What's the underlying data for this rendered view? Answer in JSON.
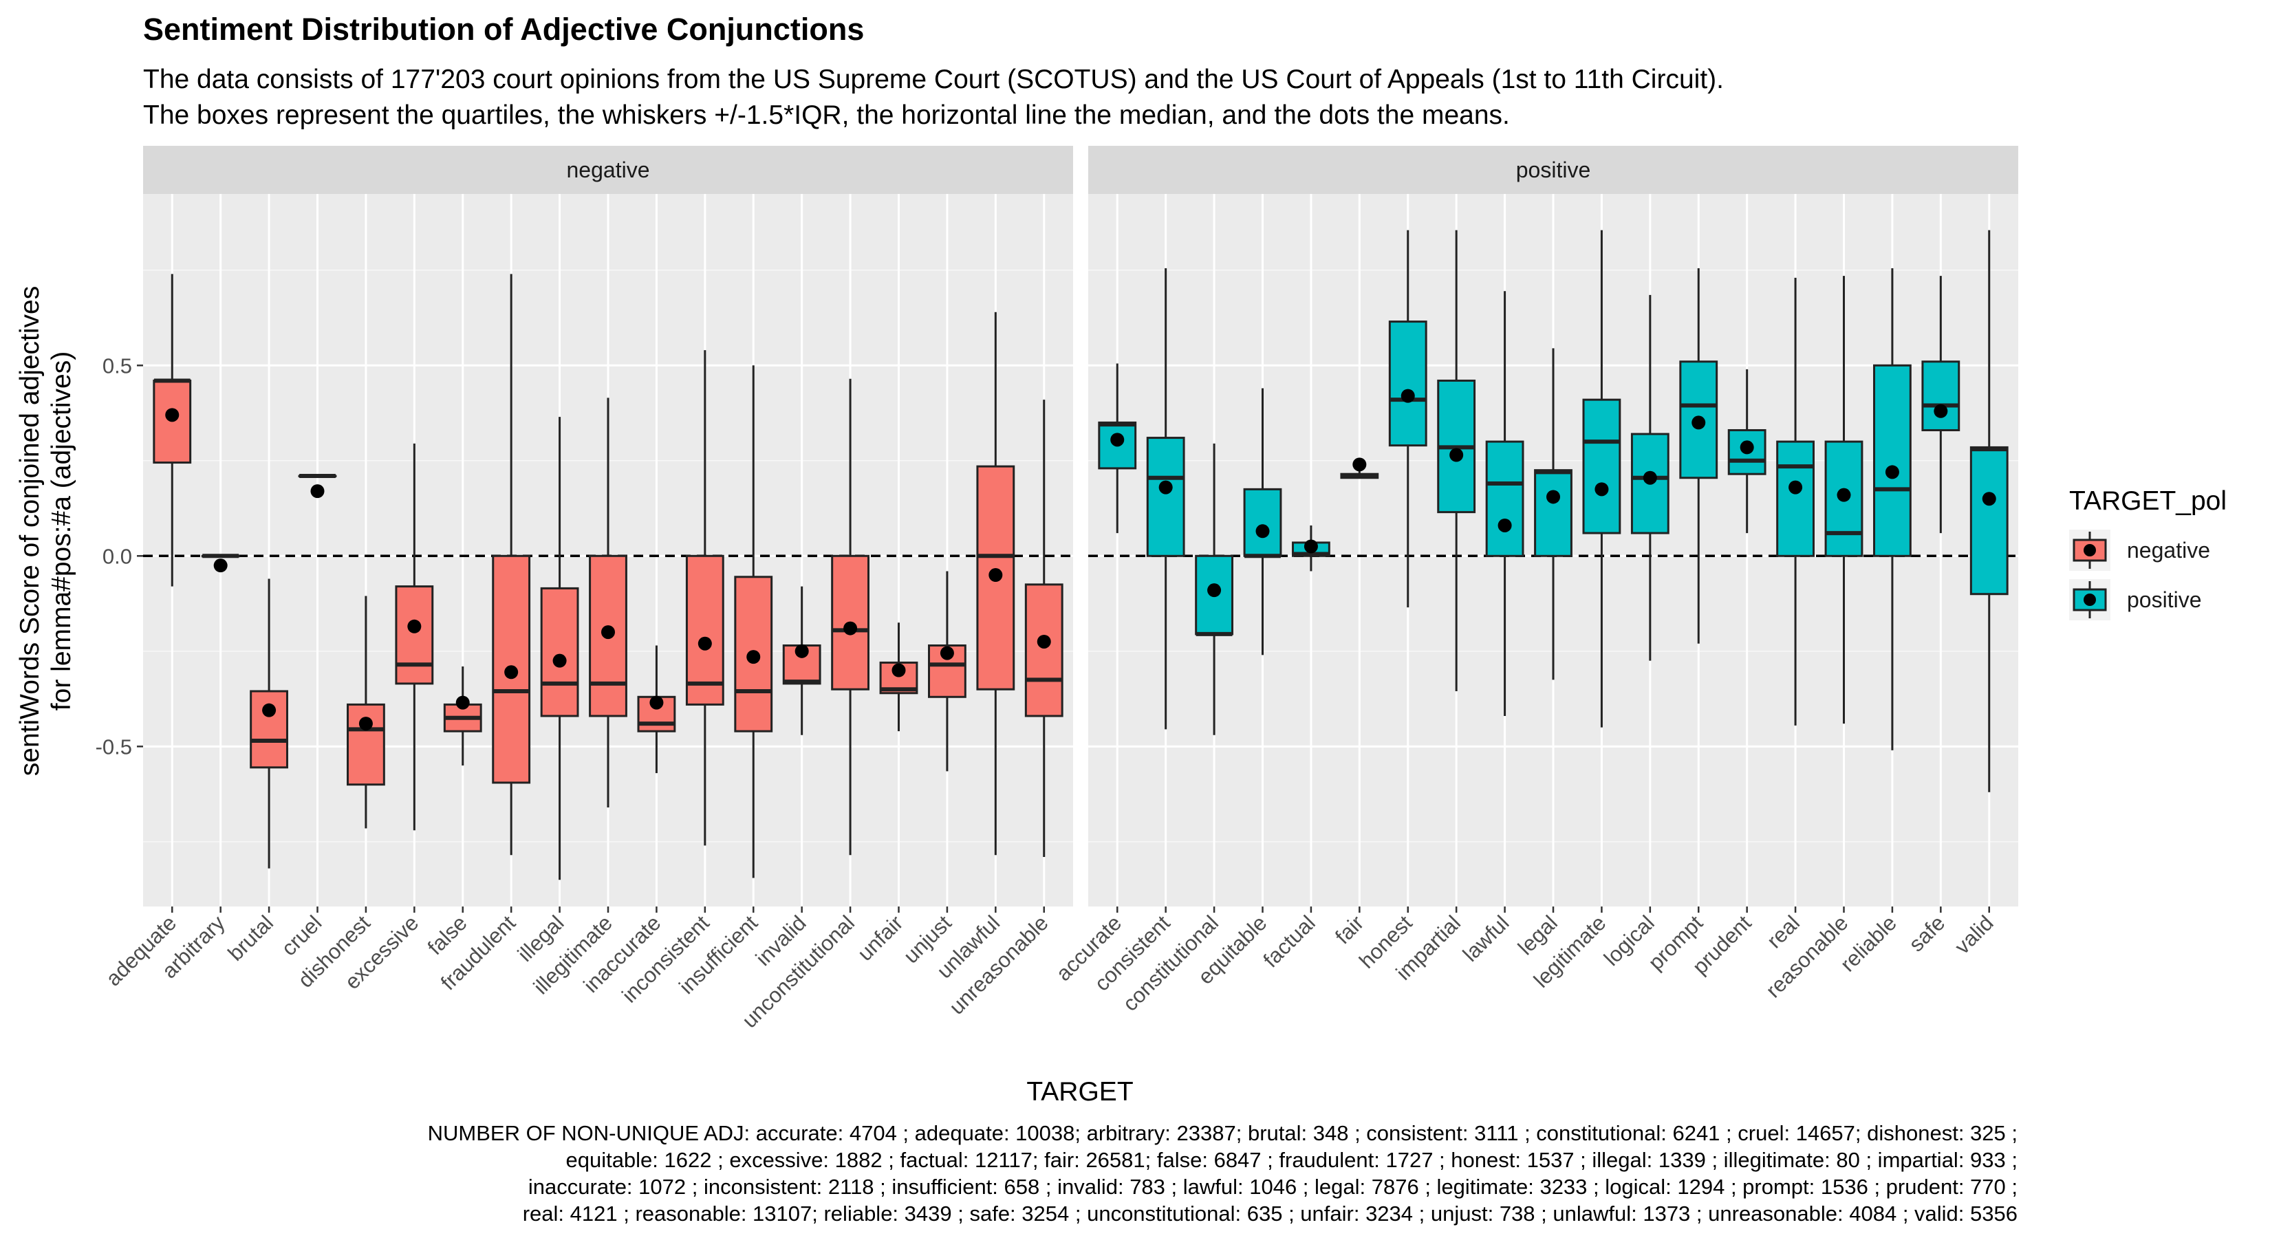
{
  "title": "Sentiment Distribution of Adjective Conjunctions",
  "subtitle_lines": [
    "The data consists of 177'203 court opinions from the US Supreme Court (SCOTUS) and the US Court of Appeals (1st to 11th Circuit).",
    "The boxes represent the quartiles, the whiskers +/-1.5*IQR, the horizontal line the median, and the dots the means."
  ],
  "caption_lines": [
    "NUMBER OF NON-UNIQUE ADJ: accurate: 4704 ; adequate: 10038; arbitrary: 23387; brutal: 348 ; consistent: 3111 ; constitutional: 6241 ; cruel: 14657; dishonest: 325 ;",
    "equitable: 1622 ; excessive: 1882 ; factual: 12117; fair: 26581; false: 6847 ; fraudulent: 1727 ; honest: 1537 ; illegal: 1339 ; illegitimate: 80 ; impartial: 933 ;",
    "inaccurate: 1072 ; inconsistent: 2118 ; insufficient: 658 ; invalid: 783 ; lawful: 1046 ; legal: 7876 ; legitimate: 3233 ; logical: 1294 ; prompt: 1536 ; prudent: 770 ;",
    "real: 4121 ; reasonable: 13107; reliable: 3439 ; safe: 3254 ; unconstitutional: 635 ; unfair: 3234 ; unjust: 738 ; unlawful: 1373 ; unreasonable: 4084 ; valid: 5356"
  ],
  "chart_data": {
    "type": "boxplot",
    "xlabel": "TARGET",
    "ylabel_lines": [
      "sentiWords Score of conjoined adjectives",
      "for lemma#pos:#a (adjectives)"
    ],
    "ylim": [
      -0.92,
      0.95
    ],
    "yticks": [
      -0.5,
      0.0,
      0.5
    ],
    "ytick_labels": [
      "-0.5",
      "0.0",
      "0.5"
    ],
    "reference_line": 0,
    "legend": {
      "title": "TARGET_pol",
      "position": "right",
      "entries": [
        {
          "label": "negative",
          "color": "#F8766D"
        },
        {
          "label": "positive",
          "color": "#00BFC4"
        }
      ]
    },
    "facets": [
      {
        "label": "negative",
        "color": "#F8766D",
        "categories": [
          "adequate",
          "arbitrary",
          "brutal",
          "cruel",
          "dishonest",
          "excessive",
          "false",
          "fraudulent",
          "illegal",
          "illegitimate",
          "inaccurate",
          "inconsistent",
          "insufficient",
          "invalid",
          "unconstitutional",
          "unfair",
          "unjust",
          "unlawful",
          "unreasonable"
        ],
        "boxes": [
          {
            "lo": -0.08,
            "q1": 0.245,
            "med": 0.46,
            "q3": 0.46,
            "hi": 0.74,
            "mean": 0.37
          },
          {
            "lo": 0.0,
            "q1": 0.0,
            "med": 0.0,
            "q3": 0.0,
            "hi": 0.0,
            "mean": -0.025
          },
          {
            "lo": -0.82,
            "q1": -0.555,
            "med": -0.485,
            "q3": -0.355,
            "hi": -0.06,
            "mean": -0.405
          },
          {
            "lo": 0.21,
            "q1": 0.21,
            "med": 0.21,
            "q3": 0.21,
            "hi": 0.21,
            "mean": 0.17
          },
          {
            "lo": -0.715,
            "q1": -0.6,
            "med": -0.455,
            "q3": -0.39,
            "hi": -0.105,
            "mean": -0.44
          },
          {
            "lo": -0.72,
            "q1": -0.335,
            "med": -0.285,
            "q3": -0.08,
            "hi": 0.295,
            "mean": -0.185
          },
          {
            "lo": -0.55,
            "q1": -0.46,
            "med": -0.425,
            "q3": -0.39,
            "hi": -0.29,
            "mean": -0.385
          },
          {
            "lo": -0.785,
            "q1": -0.595,
            "med": -0.355,
            "q3": 0.0,
            "hi": 0.74,
            "mean": -0.305
          },
          {
            "lo": -0.85,
            "q1": -0.42,
            "med": -0.335,
            "q3": -0.085,
            "hi": 0.365,
            "mean": -0.275
          },
          {
            "lo": -0.66,
            "q1": -0.42,
            "med": -0.335,
            "q3": 0.0,
            "hi": 0.415,
            "mean": -0.2
          },
          {
            "lo": -0.57,
            "q1": -0.46,
            "med": -0.44,
            "q3": -0.37,
            "hi": -0.235,
            "mean": -0.385
          },
          {
            "lo": -0.76,
            "q1": -0.39,
            "med": -0.335,
            "q3": 0.0,
            "hi": 0.54,
            "mean": -0.23
          },
          {
            "lo": -0.845,
            "q1": -0.46,
            "med": -0.355,
            "q3": -0.055,
            "hi": 0.5,
            "mean": -0.265
          },
          {
            "lo": -0.47,
            "q1": -0.335,
            "med": -0.33,
            "q3": -0.235,
            "hi": -0.08,
            "mean": -0.25
          },
          {
            "lo": -0.785,
            "q1": -0.35,
            "med": -0.195,
            "q3": 0.0,
            "hi": 0.465,
            "mean": -0.19
          },
          {
            "lo": -0.46,
            "q1": -0.36,
            "med": -0.35,
            "q3": -0.28,
            "hi": -0.175,
            "mean": -0.3
          },
          {
            "lo": -0.565,
            "q1": -0.37,
            "med": -0.285,
            "q3": -0.235,
            "hi": -0.04,
            "mean": -0.255
          },
          {
            "lo": -0.785,
            "q1": -0.35,
            "med": 0.0,
            "q3": 0.235,
            "hi": 0.64,
            "mean": -0.05
          },
          {
            "lo": -0.79,
            "q1": -0.42,
            "med": -0.325,
            "q3": -0.075,
            "hi": 0.41,
            "mean": -0.225
          }
        ]
      },
      {
        "label": "positive",
        "color": "#00BFC4",
        "categories": [
          "accurate",
          "consistent",
          "constitutional",
          "equitable",
          "factual",
          "fair",
          "honest",
          "impartial",
          "lawful",
          "legal",
          "legitimate",
          "logical",
          "prompt",
          "prudent",
          "real",
          "reasonable",
          "reliable",
          "safe",
          "valid"
        ],
        "boxes": [
          {
            "lo": 0.06,
            "q1": 0.23,
            "med": 0.345,
            "q3": 0.35,
            "hi": 0.505,
            "mean": 0.305
          },
          {
            "lo": -0.455,
            "q1": 0.0,
            "med": 0.205,
            "q3": 0.31,
            "hi": 0.755,
            "mean": 0.18
          },
          {
            "lo": -0.47,
            "q1": -0.205,
            "med": -0.205,
            "q3": 0.0,
            "hi": 0.295,
            "mean": -0.09
          },
          {
            "lo": -0.26,
            "q1": 0.0,
            "med": 0.0,
            "q3": 0.175,
            "hi": 0.44,
            "mean": 0.065
          },
          {
            "lo": -0.04,
            "q1": 0.0,
            "med": 0.005,
            "q3": 0.035,
            "hi": 0.08,
            "mean": 0.025
          },
          {
            "lo": 0.205,
            "q1": 0.205,
            "med": 0.21,
            "q3": 0.215,
            "hi": 0.225,
            "mean": 0.24
          },
          {
            "lo": -0.135,
            "q1": 0.29,
            "med": 0.41,
            "q3": 0.615,
            "hi": 0.855,
            "mean": 0.42
          },
          {
            "lo": -0.355,
            "q1": 0.115,
            "med": 0.285,
            "q3": 0.46,
            "hi": 0.855,
            "mean": 0.265
          },
          {
            "lo": -0.42,
            "q1": 0.0,
            "med": 0.19,
            "q3": 0.3,
            "hi": 0.695,
            "mean": 0.08
          },
          {
            "lo": -0.325,
            "q1": 0.0,
            "med": 0.22,
            "q3": 0.225,
            "hi": 0.545,
            "mean": 0.155
          },
          {
            "lo": -0.45,
            "q1": 0.06,
            "med": 0.3,
            "q3": 0.41,
            "hi": 0.855,
            "mean": 0.175
          },
          {
            "lo": -0.275,
            "q1": 0.06,
            "med": 0.205,
            "q3": 0.32,
            "hi": 0.685,
            "mean": 0.205
          },
          {
            "lo": -0.23,
            "q1": 0.205,
            "med": 0.395,
            "q3": 0.51,
            "hi": 0.755,
            "mean": 0.35
          },
          {
            "lo": 0.06,
            "q1": 0.215,
            "med": 0.25,
            "q3": 0.33,
            "hi": 0.49,
            "mean": 0.285
          },
          {
            "lo": -0.445,
            "q1": 0.0,
            "med": 0.235,
            "q3": 0.3,
            "hi": 0.73,
            "mean": 0.18
          },
          {
            "lo": -0.44,
            "q1": 0.0,
            "med": 0.06,
            "q3": 0.3,
            "hi": 0.735,
            "mean": 0.16
          },
          {
            "lo": -0.51,
            "q1": 0.0,
            "med": 0.175,
            "q3": 0.5,
            "hi": 0.755,
            "mean": 0.22
          },
          {
            "lo": 0.06,
            "q1": 0.33,
            "med": 0.395,
            "q3": 0.51,
            "hi": 0.735,
            "mean": 0.38
          },
          {
            "lo": -0.62,
            "q1": -0.1,
            "med": 0.28,
            "q3": 0.285,
            "hi": 0.855,
            "mean": 0.15
          }
        ]
      }
    ]
  }
}
